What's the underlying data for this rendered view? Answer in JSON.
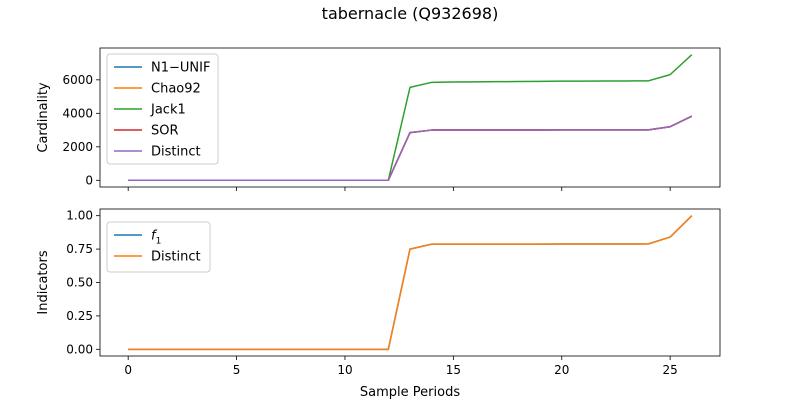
{
  "figure": {
    "title": "tabernacle (Q932698)"
  },
  "chart_data": [
    {
      "type": "line",
      "ylabel": "Cardinality",
      "xlabel": "",
      "xlim": [
        -1.3,
        27.3
      ],
      "ylim": [
        -400,
        7900
      ],
      "xticks": [
        0,
        5,
        10,
        15,
        20,
        25
      ],
      "show_xtick_labels": false,
      "yticks": [
        0,
        2000,
        4000,
        6000
      ],
      "ytick_labels": [
        "0",
        "2000",
        "4000",
        "6000"
      ],
      "grid": false,
      "legend": "top-left",
      "x": [
        0,
        1,
        2,
        3,
        4,
        5,
        6,
        7,
        8,
        9,
        10,
        11,
        12,
        13,
        14,
        15,
        16,
        17,
        18,
        19,
        20,
        21,
        22,
        23,
        24,
        25,
        26
      ],
      "series": [
        {
          "name": "N1−UNIF",
          "color": "#1f77b4",
          "values": [
            0,
            0,
            0,
            0,
            0,
            0,
            0,
            0,
            0,
            0,
            0,
            0,
            0,
            2850,
            3000,
            3000,
            3000,
            3000,
            3000,
            3000,
            3010,
            3010,
            3010,
            3010,
            3010,
            3200,
            3830
          ]
        },
        {
          "name": "Chao92",
          "color": "#ff7f0e",
          "values": [
            0,
            0,
            0,
            0,
            0,
            0,
            0,
            0,
            0,
            0,
            0,
            0,
            0,
            2850,
            3000,
            3000,
            3000,
            3000,
            3000,
            3000,
            3010,
            3010,
            3010,
            3010,
            3010,
            3200,
            3830
          ]
        },
        {
          "name": "Jack1",
          "color": "#2ca02c",
          "values": [
            0,
            0,
            0,
            0,
            0,
            0,
            0,
            0,
            0,
            0,
            0,
            0,
            0,
            5550,
            5850,
            5870,
            5880,
            5890,
            5900,
            5910,
            5920,
            5920,
            5930,
            5930,
            5940,
            6310,
            7500
          ]
        },
        {
          "name": "SOR",
          "color": "#d62728",
          "values": [
            0,
            0,
            0,
            0,
            0,
            0,
            0,
            0,
            0,
            0,
            0,
            0,
            0,
            2850,
            3000,
            3000,
            3000,
            3000,
            3000,
            3000,
            3010,
            3010,
            3010,
            3010,
            3010,
            3200,
            3830
          ]
        },
        {
          "name": "Distinct",
          "color": "#9467bd",
          "values": [
            0,
            0,
            0,
            0,
            0,
            0,
            0,
            0,
            0,
            0,
            0,
            0,
            0,
            2850,
            3000,
            3000,
            3000,
            3000,
            3000,
            3000,
            3010,
            3010,
            3010,
            3010,
            3010,
            3200,
            3830
          ]
        }
      ]
    },
    {
      "type": "line",
      "ylabel": "Indicators",
      "xlabel": "Sample Periods",
      "xlim": [
        -1.3,
        27.3
      ],
      "ylim": [
        -0.05,
        1.05
      ],
      "xticks": [
        0,
        5,
        10,
        15,
        20,
        25
      ],
      "xtick_labels": [
        "0",
        "5",
        "10",
        "15",
        "20",
        "25"
      ],
      "show_xtick_labels": true,
      "yticks": [
        0.0,
        0.25,
        0.5,
        0.75,
        1.0
      ],
      "ytick_labels": [
        "0.00",
        "0.25",
        "0.50",
        "0.75",
        "1.00"
      ],
      "grid": false,
      "legend": "top-left",
      "x": [
        0,
        1,
        2,
        3,
        4,
        5,
        6,
        7,
        8,
        9,
        10,
        11,
        12,
        13,
        14,
        15,
        16,
        17,
        18,
        19,
        20,
        21,
        22,
        23,
        24,
        25,
        26
      ],
      "series": [
        {
          "name": "f1",
          "name_main": "f",
          "name_sub": "1",
          "color": "#1f77b4",
          "values": [
            0,
            0,
            0,
            0,
            0,
            0,
            0,
            0,
            0,
            0,
            0,
            0,
            0,
            0.75,
            0.787,
            0.787,
            0.787,
            0.787,
            0.787,
            0.787,
            0.788,
            0.788,
            0.788,
            0.788,
            0.789,
            0.84,
            1.0
          ]
        },
        {
          "name": "Distinct",
          "color": "#ff7f0e",
          "values": [
            0,
            0,
            0,
            0,
            0,
            0,
            0,
            0,
            0,
            0,
            0,
            0,
            0,
            0.75,
            0.787,
            0.787,
            0.787,
            0.787,
            0.787,
            0.787,
            0.788,
            0.788,
            0.788,
            0.788,
            0.789,
            0.84,
            1.0
          ]
        }
      ]
    }
  ]
}
